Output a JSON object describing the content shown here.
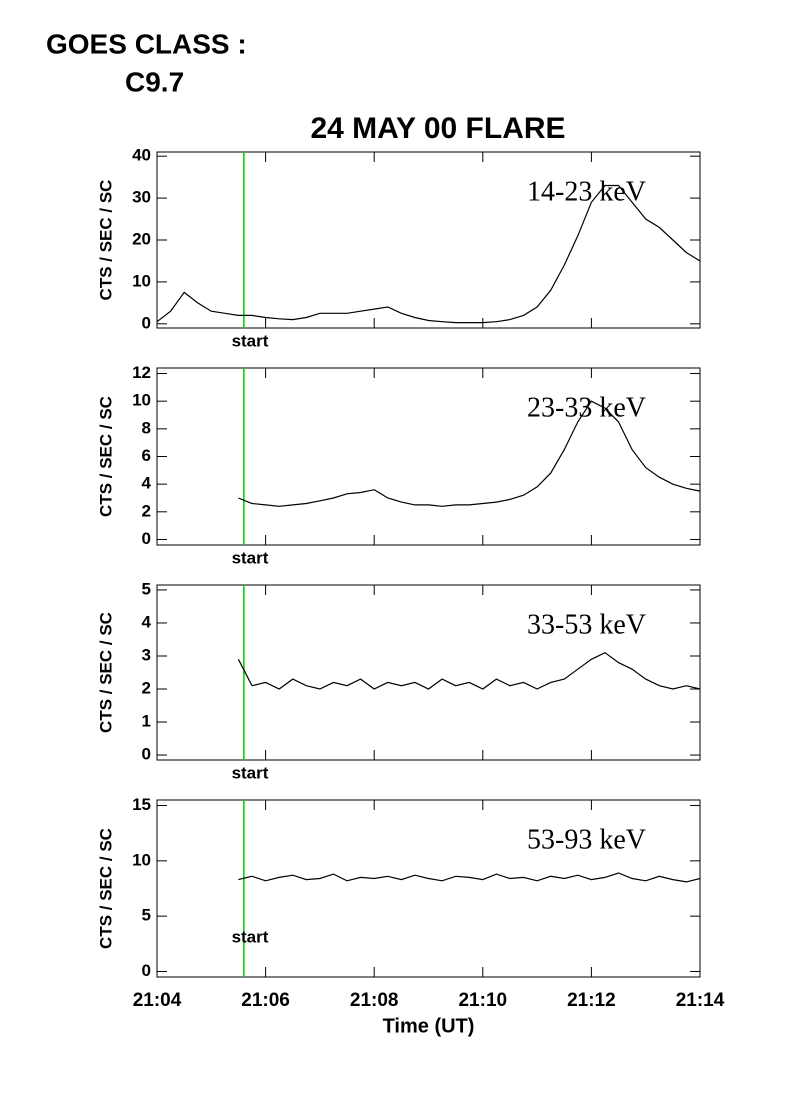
{
  "header": {
    "label": "GOES CLASS :",
    "value": "C9.7"
  },
  "chart_data": [
    {
      "type": "line",
      "title": "24 MAY 00 FLARE",
      "ylabel": "CTS / SEC / SC",
      "x": [
        1264,
        1264.25,
        1264.5,
        1264.75,
        1265,
        1265.25,
        1265.5,
        1265.75,
        1266,
        1266.25,
        1266.5,
        1266.75,
        1267,
        1267.25,
        1267.5,
        1267.75,
        1268,
        1268.25,
        1268.5,
        1268.75,
        1269,
        1269.25,
        1269.5,
        1269.75,
        1270,
        1270.25,
        1270.5,
        1270.75,
        1271,
        1271.25,
        1271.5,
        1271.75,
        1272,
        1272.25,
        1272.5,
        1272.75,
        1273,
        1273.25,
        1273.5,
        1273.75,
        1274
      ],
      "series": [
        {
          "name": "14-23 keV",
          "color": "#000000",
          "values": [
            0.5,
            3,
            7.5,
            5,
            3,
            2.5,
            2,
            2,
            1.5,
            1.2,
            1,
            1.5,
            2.5,
            2.5,
            2.5,
            3,
            3.5,
            4,
            2.5,
            1.5,
            0.8,
            0.5,
            0.3,
            0.3,
            0.3,
            0.5,
            1,
            2,
            4,
            8,
            14,
            21,
            29,
            33,
            33,
            29,
            25,
            23,
            20,
            17,
            15
          ]
        }
      ],
      "ylim": [
        -1,
        41
      ],
      "yticks": [
        0,
        10,
        20,
        30,
        40
      ],
      "marker": {
        "x": 1265.6,
        "label": "start",
        "color": "#00cc00"
      }
    },
    {
      "type": "line",
      "ylabel": "CTS / SEC / SC",
      "x": [
        1265.5,
        1265.75,
        1266,
        1266.25,
        1266.5,
        1266.75,
        1267,
        1267.25,
        1267.5,
        1267.75,
        1268,
        1268.25,
        1268.5,
        1268.75,
        1269,
        1269.25,
        1269.5,
        1269.75,
        1270,
        1270.25,
        1270.5,
        1270.75,
        1271,
        1271.25,
        1271.5,
        1271.75,
        1272,
        1272.25,
        1272.5,
        1272.75,
        1273,
        1273.25,
        1273.5,
        1273.75,
        1274
      ],
      "series": [
        {
          "name": "23-33 keV",
          "color": "#000000",
          "values": [
            3,
            2.6,
            2.5,
            2.4,
            2.5,
            2.6,
            2.8,
            3.0,
            3.3,
            3.4,
            3.6,
            3.0,
            2.7,
            2.5,
            2.5,
            2.4,
            2.5,
            2.5,
            2.6,
            2.7,
            2.9,
            3.2,
            3.8,
            4.8,
            6.5,
            8.5,
            10,
            9.5,
            8.5,
            6.5,
            5.2,
            4.5,
            4.0,
            3.7,
            3.5
          ]
        }
      ],
      "ylim": [
        -0.4,
        12.4
      ],
      "yticks": [
        0,
        2,
        4,
        6,
        8,
        10,
        12
      ],
      "marker": {
        "x": 1265.6,
        "label": "start",
        "color": "#00cc00"
      }
    },
    {
      "type": "line",
      "ylabel": "CTS / SEC / SC",
      "x": [
        1265.5,
        1265.75,
        1266,
        1266.25,
        1266.5,
        1266.75,
        1267,
        1267.25,
        1267.5,
        1267.75,
        1268,
        1268.25,
        1268.5,
        1268.75,
        1269,
        1269.25,
        1269.5,
        1269.75,
        1270,
        1270.25,
        1270.5,
        1270.75,
        1271,
        1271.25,
        1271.5,
        1271.75,
        1272,
        1272.25,
        1272.5,
        1272.75,
        1273,
        1273.25,
        1273.5,
        1273.75,
        1274
      ],
      "series": [
        {
          "name": "33-53 keV",
          "color": "#000000",
          "values": [
            2.9,
            2.1,
            2.2,
            2.0,
            2.3,
            2.1,
            2.0,
            2.2,
            2.1,
            2.3,
            2.0,
            2.2,
            2.1,
            2.2,
            2.0,
            2.3,
            2.1,
            2.2,
            2.0,
            2.3,
            2.1,
            2.2,
            2.0,
            2.2,
            2.3,
            2.6,
            2.9,
            3.1,
            2.8,
            2.6,
            2.3,
            2.1,
            2.0,
            2.1,
            2.0
          ]
        }
      ],
      "ylim": [
        -0.15,
        5.15
      ],
      "yticks": [
        0,
        1,
        2,
        3,
        4,
        5
      ],
      "marker": {
        "x": 1265.6,
        "label": "start",
        "color": "#00cc00"
      }
    },
    {
      "type": "line",
      "ylabel": "CTS / SEC / SC",
      "xlabel": "Time (UT)",
      "x": [
        1265.5,
        1265.75,
        1266,
        1266.25,
        1266.5,
        1266.75,
        1267,
        1267.25,
        1267.5,
        1267.75,
        1268,
        1268.25,
        1268.5,
        1268.75,
        1269,
        1269.25,
        1269.5,
        1269.75,
        1270,
        1270.25,
        1270.5,
        1270.75,
        1271,
        1271.25,
        1271.5,
        1271.75,
        1272,
        1272.25,
        1272.5,
        1272.75,
        1273,
        1273.25,
        1273.5,
        1273.75,
        1274
      ],
      "series": [
        {
          "name": "53-93 keV",
          "color": "#000000",
          "values": [
            8.3,
            8.6,
            8.2,
            8.5,
            8.7,
            8.3,
            8.4,
            8.8,
            8.2,
            8.5,
            8.4,
            8.6,
            8.3,
            8.7,
            8.4,
            8.2,
            8.6,
            8.5,
            8.3,
            8.8,
            8.4,
            8.5,
            8.2,
            8.6,
            8.4,
            8.7,
            8.3,
            8.5,
            8.9,
            8.4,
            8.2,
            8.6,
            8.3,
            8.1,
            8.4
          ]
        }
      ],
      "ylim": [
        -0.5,
        15.5
      ],
      "yticks": [
        0,
        5,
        10,
        15
      ],
      "xlim": [
        1264,
        1274
      ],
      "xticks": [
        {
          "value": 1264,
          "label": "21:04"
        },
        {
          "value": 1266,
          "label": "21:06"
        },
        {
          "value": 1268,
          "label": "21:08"
        },
        {
          "value": 1270,
          "label": "21:10"
        },
        {
          "value": 1272,
          "label": "21:12"
        },
        {
          "value": 1274,
          "label": "21:14"
        }
      ],
      "marker": {
        "x": 1265.6,
        "label": "start",
        "color": "#00cc00"
      }
    }
  ]
}
